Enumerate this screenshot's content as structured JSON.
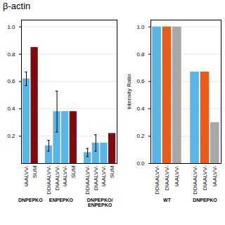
{
  "chart_data": [
    {
      "type": "bar",
      "title": "β-actin",
      "groups": [
        {
          "name": "DNPEPKO",
          "categories": [
            "IAALVV-",
            "SUM"
          ],
          "values": [
            0.62,
            0.85
          ],
          "errors": [
            0.05,
            0.0
          ],
          "colors": [
            "#5ab4e5",
            "#7b0c10"
          ]
        },
        {
          "name": "ENPEPKO",
          "categories": [
            "DDIAALVV-",
            "DIAALVV-",
            "IAALVV-",
            "SUM"
          ],
          "values": [
            0.13,
            0.38,
            0.38,
            0.38
          ],
          "errors": [
            0.04,
            0.15,
            0.0,
            0.0
          ],
          "colors": [
            "#5ab4e5",
            "#5ab4e5",
            "#5ab4e5",
            "#7b0c10"
          ]
        },
        {
          "name": "DNPEPKO/\nENPEPKO",
          "categories": [
            "DDIAALVV-",
            "DIAALVV-",
            "IAALVV-",
            "SUM"
          ],
          "values": [
            0.08,
            0.15,
            0.15,
            0.22
          ],
          "errors": [
            0.03,
            0.06,
            0.0,
            0.0
          ],
          "colors": [
            "#5ab4e5",
            "#5ab4e5",
            "#5ab4e5",
            "#7b0c10"
          ]
        }
      ],
      "ylim": [
        0,
        1.05
      ],
      "yticks": [
        0.2,
        0.4,
        0.6,
        0.8,
        {
          "value": 1,
          "label": "1.0"
        }
      ],
      "grid": true
    },
    {
      "type": "bar",
      "ylabel": "Intensity Ratio",
      "groups": [
        {
          "name": "WT",
          "categories": [
            "DDIAALVV-",
            "DIAALVV-",
            "IAALVV-"
          ],
          "values": [
            1.0,
            1.0,
            1.0
          ],
          "colors": [
            "#5ab4e5",
            "#e55c1b",
            "#a8a8a8"
          ]
        },
        {
          "name": "DNPEPKO",
          "categories": [
            "DDIAALVV-",
            "DIAALVV-",
            "IAALVV-"
          ],
          "values": [
            0.67,
            0.67,
            0.3
          ],
          "colors": [
            "#5ab4e5",
            "#e55c1b",
            "#a8a8a8"
          ]
        }
      ],
      "ylim": [
        0,
        1.05
      ],
      "yticks": [
        {
          "value": 0,
          "label": "0.0"
        },
        0.2,
        0.4,
        0.6,
        0.8,
        {
          "value": 1,
          "label": "1.0"
        }
      ],
      "grid": true
    }
  ]
}
